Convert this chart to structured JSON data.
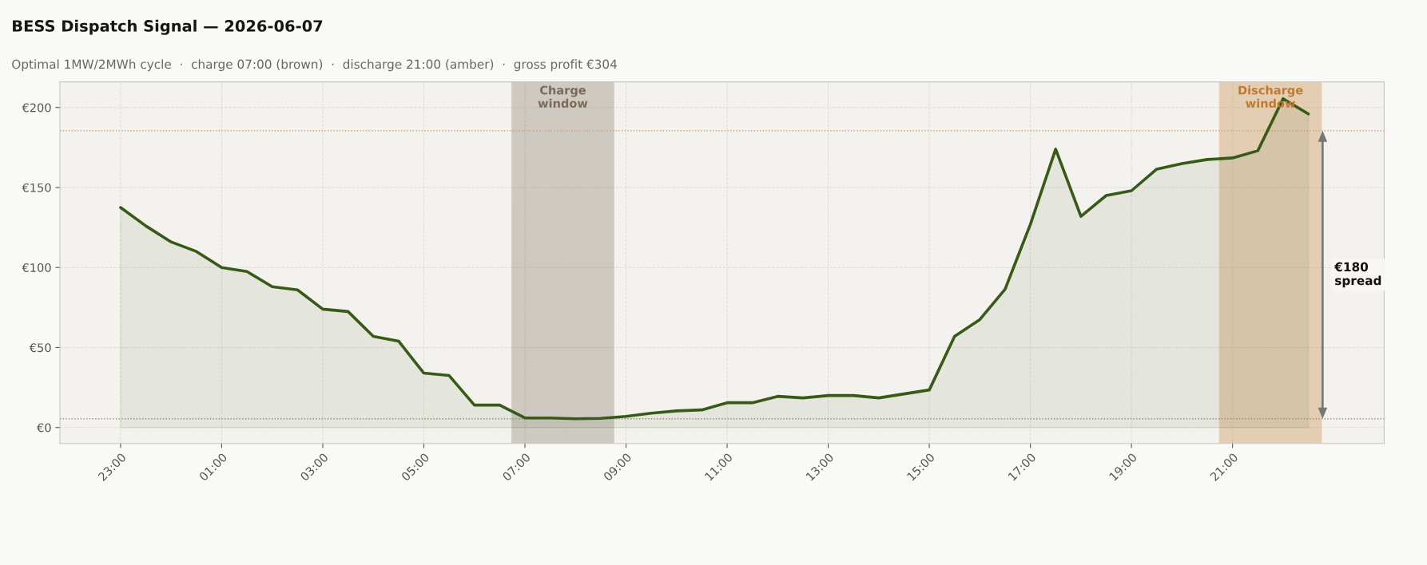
{
  "chart_data": {
    "type": "area",
    "title": "BESS Dispatch Signal — 2026-06-07",
    "subtitle": "Optimal 1MW/2MWh cycle  ·  charge 07:00 (brown)  ·  discharge 21:00 (amber)  ·  gross profit €304",
    "x": [
      "2026-06-06T23:00",
      "2026-06-06T23:30",
      "2026-06-07T00:00",
      "2026-06-07T00:30",
      "2026-06-07T01:00",
      "2026-06-07T01:30",
      "2026-06-07T02:00",
      "2026-06-07T02:30",
      "2026-06-07T03:00",
      "2026-06-07T03:30",
      "2026-06-07T04:00",
      "2026-06-07T04:30",
      "2026-06-07T05:00",
      "2026-06-07T05:30",
      "2026-06-07T06:00",
      "2026-06-07T06:30",
      "2026-06-07T07:00",
      "2026-06-07T07:30",
      "2026-06-07T08:00",
      "2026-06-07T08:30",
      "2026-06-07T09:00",
      "2026-06-07T09:30",
      "2026-06-07T10:00",
      "2026-06-07T10:30",
      "2026-06-07T11:00",
      "2026-06-07T11:30",
      "2026-06-07T12:00",
      "2026-06-07T12:30",
      "2026-06-07T13:00",
      "2026-06-07T13:30",
      "2026-06-07T14:00",
      "2026-06-07T14:30",
      "2026-06-07T15:00",
      "2026-06-07T15:30",
      "2026-06-07T16:00",
      "2026-06-07T16:30",
      "2026-06-07T17:00",
      "2026-06-07T17:30",
      "2026-06-07T18:00",
      "2026-06-07T18:30",
      "2026-06-07T19:00",
      "2026-06-07T19:30",
      "2026-06-07T20:00",
      "2026-06-07T20:30",
      "2026-06-07T21:00",
      "2026-06-07T21:30",
      "2026-06-07T22:00",
      "2026-06-07T22:30"
    ],
    "series": [
      {
        "color": "#375a17",
        "values": [
          137.5,
          126,
          116,
          110,
          100,
          97.5,
          88,
          86,
          74,
          72.5,
          57,
          54,
          34,
          32.5,
          14,
          14,
          6,
          6,
          5.5,
          5.7,
          7,
          9,
          10.4,
          11,
          15.5,
          15.5,
          19.5,
          18.5,
          20,
          20,
          18.5,
          21,
          23.5,
          57,
          67.5,
          86.5,
          127,
          174,
          132,
          145,
          148,
          161.5,
          165,
          167.5,
          168.5,
          173,
          205.5,
          196
        ]
      }
    ],
    "xlim": [
      "2026-06-06T21:48",
      "2026-06-08T00:00"
    ],
    "ylim": [
      -10,
      216
    ],
    "xticks": [
      {
        "value": "2026-06-06T23:00",
        "label": "23:00"
      },
      {
        "value": "2026-06-07T01:00",
        "label": "01:00"
      },
      {
        "value": "2026-06-07T03:00",
        "label": "03:00"
      },
      {
        "value": "2026-06-07T05:00",
        "label": "05:00"
      },
      {
        "value": "2026-06-07T07:00",
        "label": "07:00"
      },
      {
        "value": "2026-06-07T09:00",
        "label": "09:00"
      },
      {
        "value": "2026-06-07T11:00",
        "label": "11:00"
      },
      {
        "value": "2026-06-07T13:00",
        "label": "13:00"
      },
      {
        "value": "2026-06-07T15:00",
        "label": "15:00"
      },
      {
        "value": "2026-06-07T17:00",
        "label": "17:00"
      },
      {
        "value": "2026-06-07T19:00",
        "label": "19:00"
      },
      {
        "value": "2026-06-07T21:00",
        "label": "21:00"
      }
    ],
    "yticks": [
      {
        "value": 0,
        "label": "€0"
      },
      {
        "value": 50,
        "label": "€50"
      },
      {
        "value": 100,
        "label": "€100"
      },
      {
        "value": 150,
        "label": "€150"
      },
      {
        "value": 200,
        "label": "€200"
      }
    ],
    "bands": [
      {
        "axis": "x",
        "from": "2026-06-07T06:45",
        "to": "2026-06-07T08:45",
        "label": "Charge\nwindow",
        "color": "#7a6a5a"
      },
      {
        "axis": "x",
        "from": "2026-06-07T20:45",
        "to": "2026-06-07T22:45",
        "label": "Discharge\nwindow",
        "color": "#c07a30"
      }
    ],
    "ref_lines": [
      {
        "axis": "y",
        "value": 5.5,
        "color": "#999080",
        "line_style": "dotted"
      },
      {
        "axis": "y",
        "value": 185.5,
        "color": "#d9a070",
        "line_style": "dotted"
      }
    ],
    "annotations": [
      "€180\nspread"
    ],
    "grid": true,
    "line_style": "solid",
    "marker": "none",
    "legend": false
  }
}
